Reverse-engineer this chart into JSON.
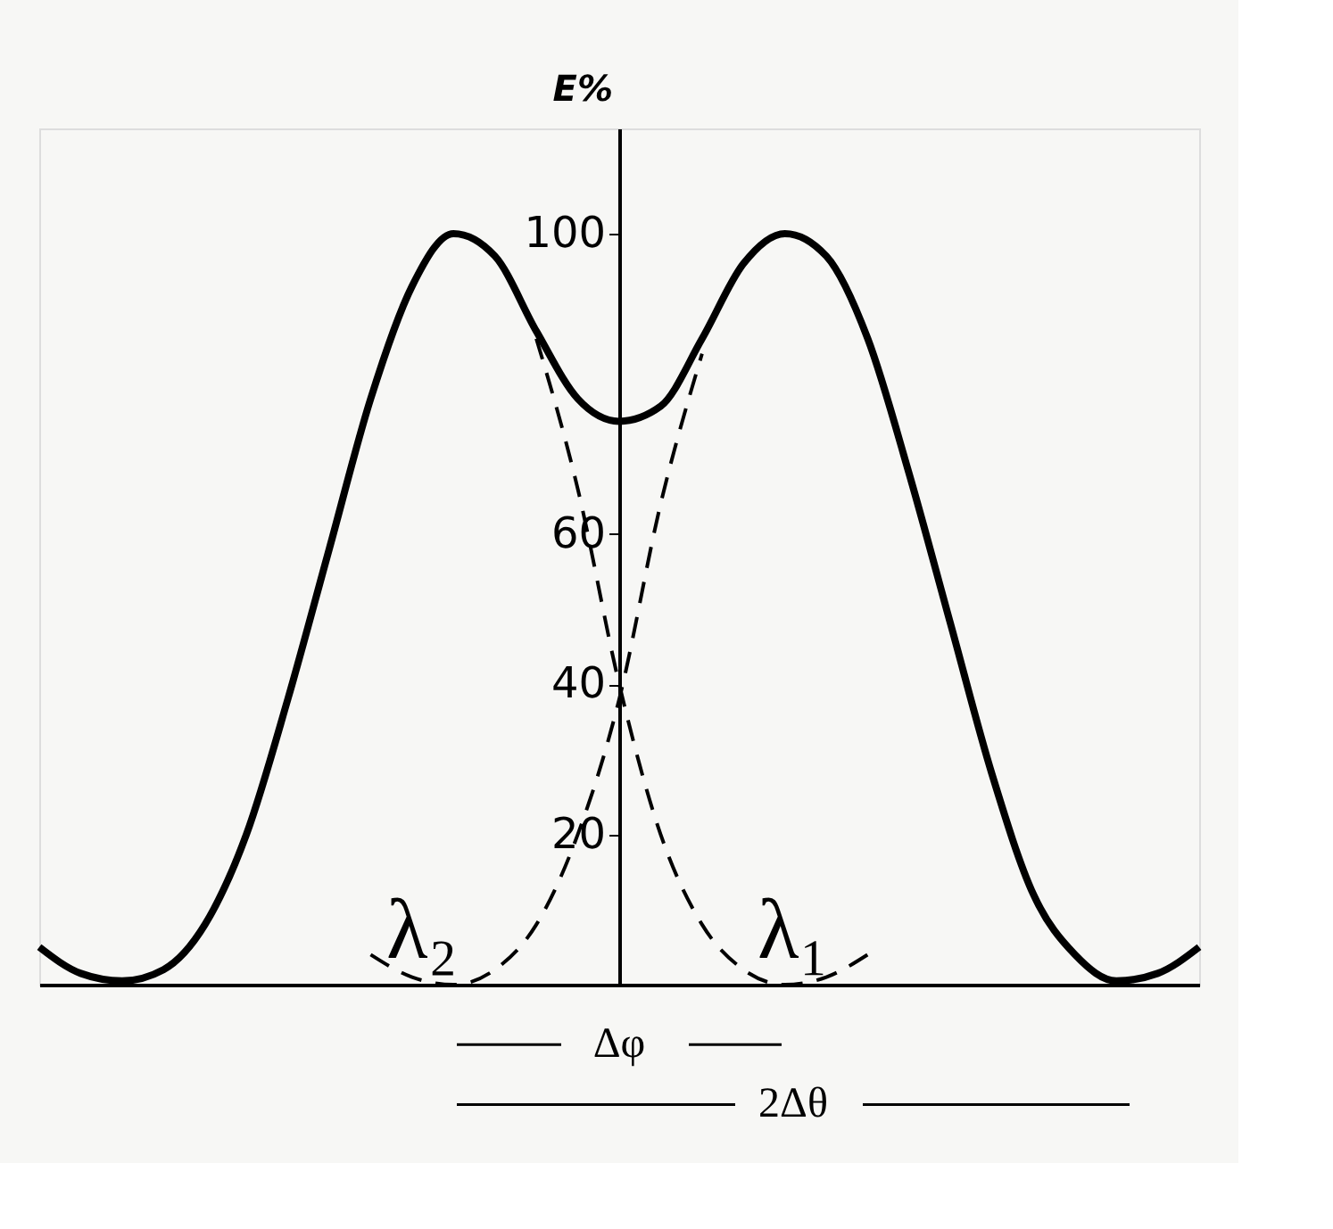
{
  "chart_data": {
    "type": "line",
    "ylabel": "E%",
    "categories": [
      null,
      null,
      null,
      null,
      null,
      null,
      null,
      null,
      null,
      null,
      null,
      null,
      null,
      null,
      null,
      null,
      null,
      null,
      null,
      null,
      null,
      null,
      null,
      null,
      null,
      null,
      null,
      null,
      null
    ],
    "series": [
      {
        "color": "#000000",
        "line_style": "solid",
        "values": [
          5,
          1.5,
          0.5,
          2,
          8,
          20,
          38,
          58,
          78,
          93,
          100,
          97,
          87,
          78,
          75,
          77,
          86,
          96,
          100,
          97,
          86,
          68,
          48,
          28,
          12,
          4,
          0.5,
          1.5,
          5
        ]
      },
      {
        "color": "#000000",
        "line_style": "dashed",
        "values": [
          null,
          null,
          null,
          null,
          null,
          null,
          null,
          null,
          null,
          null,
          null,
          null,
          86,
          66,
          40,
          20,
          8,
          2,
          0,
          1,
          4,
          null,
          null,
          null,
          null,
          null,
          null,
          null,
          null
        ]
      },
      {
        "color": "#000000",
        "line_style": "dashed",
        "values": [
          null,
          null,
          null,
          null,
          null,
          null,
          null,
          null,
          4,
          1,
          0,
          2,
          8,
          20,
          38,
          64,
          84,
          null,
          null,
          null,
          null,
          null,
          null,
          null,
          null,
          null,
          null,
          null,
          null
        ]
      }
    ],
    "ylim": [
      0,
      114
    ],
    "yticks": [
      20,
      40,
      60,
      100
    ],
    "tick_labels": "y",
    "grid": false,
    "annotations": [
      "λ₂",
      "λ₁",
      "Δφ",
      "2Δθ"
    ]
  }
}
